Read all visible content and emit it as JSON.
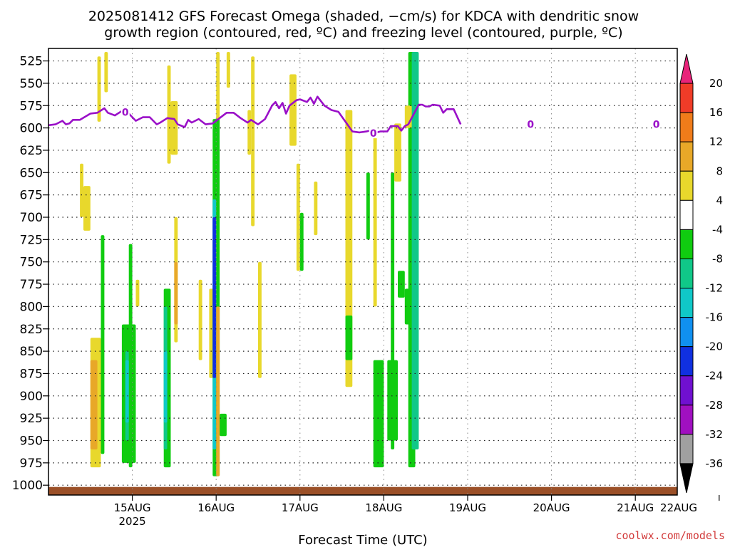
{
  "title": {
    "line1": "2025081412 GFS Forecast Omega (shaded, −cm/s) for KDCA with dendritic snow",
    "line2": "growth region (contoured, red, ºC) and freezing level (contoured, purple, ºC)"
  },
  "credit": "coolwx.com/models",
  "chart_data": {
    "type": "heatmap",
    "title": "2025081412 GFS Forecast Omega (shaded, −cm/s) for KDCA with dendritic snow growth region (contoured, red, ºC) and freezing level (contoured, purple, ºC)",
    "xlabel": "Forecast Time (UTC)",
    "ylabel": "",
    "x_range_hours": [
      -12,
      168
    ],
    "x_ticks": [
      {
        "hour": 12,
        "label": "15AUG",
        "sublabel": "2025"
      },
      {
        "hour": 36,
        "label": "16AUG",
        "sublabel": ""
      },
      {
        "hour": 60,
        "label": "17AUG",
        "sublabel": ""
      },
      {
        "hour": 84,
        "label": "18AUG",
        "sublabel": ""
      },
      {
        "hour": 108,
        "label": "19AUG",
        "sublabel": ""
      },
      {
        "hour": 132,
        "label": "20AUG",
        "sublabel": ""
      },
      {
        "hour": 156,
        "label": "21AUG",
        "sublabel": ""
      },
      {
        "hour": 180,
        "label": "22AUG",
        "sublabel": ""
      }
    ],
    "y_levels": [
      525,
      550,
      575,
      600,
      625,
      650,
      675,
      700,
      725,
      750,
      775,
      800,
      825,
      850,
      875,
      900,
      925,
      950,
      975,
      1000
    ],
    "y_range_hpa": [
      511,
      1011
    ],
    "grid": true,
    "colorbar": {
      "position": "right",
      "ticks": [
        20,
        16,
        12,
        8,
        4,
        -4,
        -8,
        -12,
        -16,
        -20,
        -24,
        -28,
        -32,
        -36
      ],
      "bins": [
        {
          "min": 20,
          "max": null,
          "color": "#e8237a"
        },
        {
          "min": 16,
          "max": 20,
          "color": "#f03c28"
        },
        {
          "min": 12,
          "max": 16,
          "color": "#f07c1a"
        },
        {
          "min": 8,
          "max": 12,
          "color": "#e8a828"
        },
        {
          "min": 4,
          "max": 8,
          "color": "#e8d82c"
        },
        {
          "min": -4,
          "max": 4,
          "color": "#ffffff"
        },
        {
          "min": -8,
          "max": -4,
          "color": "#10cc10"
        },
        {
          "min": -12,
          "max": -8,
          "color": "#10c888"
        },
        {
          "min": -16,
          "max": -12,
          "color": "#10c8c8"
        },
        {
          "min": -20,
          "max": -16,
          "color": "#1090f0"
        },
        {
          "min": -24,
          "max": -20,
          "color": "#1030e0"
        },
        {
          "min": -28,
          "max": -24,
          "color": "#7010d0"
        },
        {
          "min": -32,
          "max": -28,
          "color": "#a010c0"
        },
        {
          "min": -36,
          "max": -32,
          "color": "#a0a0a0"
        },
        {
          "min": null,
          "max": -36,
          "color": "#000000"
        }
      ]
    },
    "freezing_level": {
      "color": "#9a10c8",
      "label": "0",
      "label_hours": [
        10,
        81,
        126,
        162
      ],
      "points": [
        [
          -12,
          597
        ],
        [
          -10,
          596
        ],
        [
          -8,
          592
        ],
        [
          -7,
          596
        ],
        [
          -6,
          595
        ],
        [
          -5,
          591
        ],
        [
          -3,
          591
        ],
        [
          0,
          584
        ],
        [
          2,
          583
        ],
        [
          4,
          578
        ],
        [
          5,
          583
        ],
        [
          7,
          586
        ],
        [
          9,
          581
        ],
        [
          11,
          584
        ],
        [
          13,
          592
        ],
        [
          15,
          588
        ],
        [
          17,
          588
        ],
        [
          19,
          596
        ],
        [
          20,
          594
        ],
        [
          22,
          589
        ],
        [
          24,
          590
        ],
        [
          25,
          596
        ],
        [
          27,
          599
        ],
        [
          28,
          591
        ],
        [
          29,
          594
        ],
        [
          31,
          590
        ],
        [
          33,
          596
        ],
        [
          35,
          595
        ],
        [
          37,
          589
        ],
        [
          39,
          583
        ],
        [
          41,
          583
        ],
        [
          43,
          589
        ],
        [
          45,
          594
        ],
        [
          46,
          591
        ],
        [
          48,
          596
        ],
        [
          50,
          590
        ],
        [
          52,
          575
        ],
        [
          53,
          571
        ],
        [
          54,
          578
        ],
        [
          55,
          572
        ],
        [
          56,
          584
        ],
        [
          57,
          575
        ],
        [
          59,
          569
        ],
        [
          60,
          568
        ],
        [
          62,
          571
        ],
        [
          63,
          566
        ],
        [
          64,
          573
        ],
        [
          65,
          565
        ],
        [
          67,
          575
        ],
        [
          69,
          580
        ],
        [
          71,
          582
        ],
        [
          73,
          593
        ],
        [
          75,
          604
        ],
        [
          77,
          605
        ],
        [
          79,
          604
        ],
        [
          80,
          603
        ],
        [
          81,
          606
        ],
        [
          82,
          605
        ],
        [
          83,
          604
        ],
        [
          85,
          604
        ],
        [
          86,
          598
        ],
        [
          88,
          598
        ],
        [
          89,
          603
        ],
        [
          90,
          598
        ],
        [
          91,
          596
        ],
        [
          94,
          574
        ],
        [
          95,
          574
        ],
        [
          96,
          576
        ],
        [
          97,
          576
        ],
        [
          98,
          574
        ],
        [
          100,
          575
        ],
        [
          101,
          583
        ],
        [
          102,
          579
        ],
        [
          104,
          579
        ],
        [
          106,
          596
        ]
      ]
    },
    "omega_regions": [
      {
        "h0": -3,
        "h1": -2,
        "p0": 640,
        "p1": 700,
        "value": 6
      },
      {
        "h0": -2,
        "h1": 0,
        "p0": 665,
        "p1": 715,
        "value": 6
      },
      {
        "h0": 2,
        "h1": 3,
        "p0": 520,
        "p1": 593,
        "value": 6
      },
      {
        "h0": 4,
        "h1": 5,
        "p0": 515,
        "p1": 560,
        "value": 6
      },
      {
        "h0": 0,
        "h1": 3,
        "p0": 835,
        "p1": 980,
        "value": 6
      },
      {
        "h0": 0,
        "h1": 2,
        "p0": 860,
        "p1": 960,
        "value": 10
      },
      {
        "h0": 3,
        "h1": 4,
        "p0": 720,
        "p1": 965,
        "value": -6
      },
      {
        "h0": 11,
        "h1": 12,
        "p0": 730,
        "p1": 980,
        "value": -6
      },
      {
        "h0": 9,
        "h1": 13,
        "p0": 820,
        "p1": 975,
        "value": -6
      },
      {
        "h0": 10,
        "h1": 11,
        "p0": 850,
        "p1": 950,
        "value": -10
      },
      {
        "h0": 10,
        "h1": 11,
        "p0": 860,
        "p1": 930,
        "value": -14
      },
      {
        "h0": 13,
        "h1": 14,
        "p0": 770,
        "p1": 800,
        "value": 6
      },
      {
        "h0": 22,
        "h1": 23,
        "p0": 530,
        "p1": 640,
        "value": 6
      },
      {
        "h0": 23,
        "h1": 25,
        "p0": 570,
        "p1": 630,
        "value": 6
      },
      {
        "h0": 24,
        "h1": 25,
        "p0": 700,
        "p1": 840,
        "value": 6
      },
      {
        "h0": 24,
        "h1": 25,
        "p0": 750,
        "p1": 820,
        "value": 10
      },
      {
        "h0": 21,
        "h1": 23,
        "p0": 780,
        "p1": 980,
        "value": -6
      },
      {
        "h0": 21,
        "h1": 22,
        "p0": 800,
        "p1": 960,
        "value": -10
      },
      {
        "h0": 21,
        "h1": 22,
        "p0": 850,
        "p1": 930,
        "value": -14
      },
      {
        "h0": 22,
        "h1": 23,
        "p0": 945,
        "p1": 965,
        "value": -6
      },
      {
        "h0": 31,
        "h1": 32,
        "p0": 770,
        "p1": 860,
        "value": 6
      },
      {
        "h0": 36,
        "h1": 37,
        "p0": 515,
        "p1": 600,
        "value": 6
      },
      {
        "h0": 39,
        "h1": 40,
        "p0": 515,
        "p1": 555,
        "value": 6
      },
      {
        "h0": 34,
        "h1": 36,
        "p0": 780,
        "p1": 880,
        "value": 6
      },
      {
        "h0": 35,
        "h1": 37,
        "p0": 590,
        "p1": 990,
        "value": -6
      },
      {
        "h0": 35,
        "h1": 36,
        "p0": 680,
        "p1": 960,
        "value": -14
      },
      {
        "h0": 35,
        "h1": 36,
        "p0": 700,
        "p1": 880,
        "value": -22
      },
      {
        "h0": 36,
        "h1": 37,
        "p0": 800,
        "p1": 990,
        "value": 10
      },
      {
        "h0": 37,
        "h1": 39,
        "p0": 920,
        "p1": 945,
        "value": -6
      },
      {
        "h0": 45,
        "h1": 46,
        "p0": 580,
        "p1": 630,
        "value": 6
      },
      {
        "h0": 46,
        "h1": 47,
        "p0": 520,
        "p1": 710,
        "value": 6
      },
      {
        "h0": 48,
        "h1": 49,
        "p0": 750,
        "p1": 880,
        "value": 6
      },
      {
        "h0": 57,
        "h1": 59,
        "p0": 540,
        "p1": 620,
        "value": 6
      },
      {
        "h0": 59,
        "h1": 60,
        "p0": 640,
        "p1": 760,
        "value": 6
      },
      {
        "h0": 60,
        "h1": 61,
        "p0": 695,
        "p1": 760,
        "value": -6
      },
      {
        "h0": 64,
        "h1": 65,
        "p0": 660,
        "p1": 720,
        "value": 6
      },
      {
        "h0": 73,
        "h1": 75,
        "p0": 580,
        "p1": 890,
        "value": 6
      },
      {
        "h0": 73,
        "h1": 75,
        "p0": 810,
        "p1": 860,
        "value": -6
      },
      {
        "h0": 81,
        "h1": 82,
        "p0": 610,
        "p1": 800,
        "value": 6
      },
      {
        "h0": 79,
        "h1": 80,
        "p0": 650,
        "p1": 725,
        "value": -6
      },
      {
        "h0": 81,
        "h1": 84,
        "p0": 860,
        "p1": 980,
        "value": -6
      },
      {
        "h0": 85,
        "h1": 88,
        "p0": 860,
        "p1": 950,
        "value": -6
      },
      {
        "h0": 86,
        "h1": 87,
        "p0": 650,
        "p1": 960,
        "value": -6
      },
      {
        "h0": 87,
        "h1": 89,
        "p0": 595,
        "p1": 660,
        "value": 6
      },
      {
        "h0": 88,
        "h1": 90,
        "p0": 760,
        "p1": 790,
        "value": -6
      },
      {
        "h0": 90,
        "h1": 92,
        "p0": 780,
        "p1": 820,
        "value": -6
      },
      {
        "h0": 91,
        "h1": 93,
        "p0": 515,
        "p1": 980,
        "value": -6
      },
      {
        "h0": 92,
        "h1": 94,
        "p0": 515,
        "p1": 960,
        "value": -10
      },
      {
        "h0": 90,
        "h1": 92,
        "p0": 575,
        "p1": 600,
        "value": 6
      }
    ]
  }
}
